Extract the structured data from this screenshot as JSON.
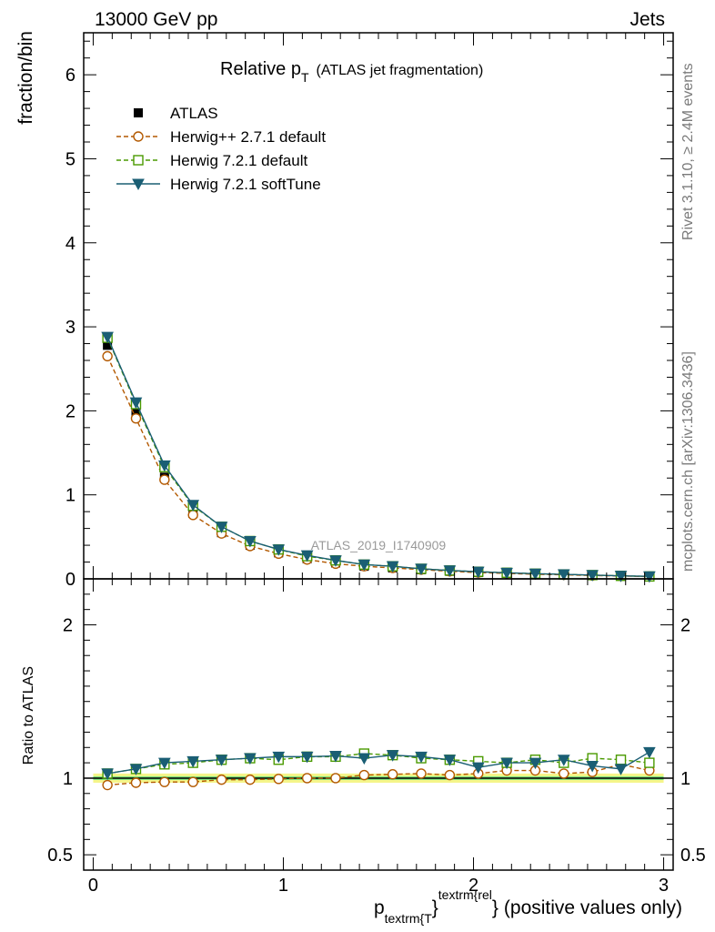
{
  "header": {
    "left": "13000 GeV pp",
    "right": "Jets"
  },
  "side_labels": {
    "rivet": "Rivet 3.1.10, ≥ 2.4M events",
    "mcplots": "mcplots.cern.ch [arXiv:1306.3436]"
  },
  "chart_data": {
    "type": "line",
    "title_main": "Relative p",
    "title_sub": "T",
    "title_rest": "(ATLAS jet fragmentation)",
    "watermark": "ATLAS_2019_I1740909",
    "ylabel": "fraction/bin",
    "ratio_ylabel": "Ratio to ATLAS",
    "xlabel": {
      "p": "p",
      "sub": "textrm{T",
      "brace1": "}",
      "sup": "textrm{rel",
      "brace2": "}",
      "rest": "(positive values only)"
    },
    "xlim": [
      -0.05,
      3.05
    ],
    "ylim": [
      0,
      6.5
    ],
    "ratio_ylim": [
      0.4,
      2.3
    ],
    "x_ticks": [
      {
        "v": 0,
        "label": "0"
      },
      {
        "v": 1,
        "label": "1"
      },
      {
        "v": 2,
        "label": "2"
      },
      {
        "v": 3,
        "label": "3"
      }
    ],
    "y_ticks": [
      {
        "v": 0,
        "label": "0"
      },
      {
        "v": 1,
        "label": "1"
      },
      {
        "v": 2,
        "label": "2"
      },
      {
        "v": 3,
        "label": "3"
      },
      {
        "v": 4,
        "label": "4"
      },
      {
        "v": 5,
        "label": "5"
      },
      {
        "v": 6,
        "label": "6"
      }
    ],
    "ratio_y_ticks": [
      {
        "v": 0.5,
        "label": "0.5"
      },
      {
        "v": 1,
        "label": "1"
      },
      {
        "v": 2,
        "label": "2"
      }
    ],
    "x": [
      0.075,
      0.225,
      0.375,
      0.525,
      0.675,
      0.825,
      0.975,
      1.125,
      1.275,
      1.425,
      1.575,
      1.725,
      1.875,
      2.025,
      2.175,
      2.325,
      2.475,
      2.625,
      2.775,
      2.925
    ],
    "data": {
      "name": "ATLAS",
      "values": [
        2.78,
        1.97,
        1.21,
        0.78,
        0.55,
        0.4,
        0.31,
        0.24,
        0.19,
        0.15,
        0.13,
        0.11,
        0.09,
        0.075,
        0.065,
        0.055,
        0.048,
        0.04,
        0.032,
        0.026
      ]
    },
    "series": [
      {
        "name": "Herwig++ 2.7.1 default",
        "color": "#b35900",
        "dash": "5,3",
        "marker": "circle",
        "values": [
          2.65,
          1.91,
          1.18,
          0.76,
          0.54,
          0.39,
          0.3,
          0.23,
          0.18,
          0.15,
          0.13,
          0.11,
          0.09,
          0.075,
          0.065,
          0.055,
          0.048,
          0.04,
          0.034,
          0.027
        ],
        "ratio": [
          0.955,
          0.97,
          0.975,
          0.975,
          0.99,
          0.99,
          0.995,
          1.0,
          1.0,
          1.02,
          1.025,
          1.03,
          1.02,
          1.03,
          1.05,
          1.05,
          1.03,
          1.04,
          1.09,
          1.05
        ]
      },
      {
        "name": "Herwig 7.2.1 default",
        "color": "#4a9a00",
        "dash": "5,3",
        "marker": "square",
        "values": [
          2.87,
          2.08,
          1.33,
          0.87,
          0.62,
          0.45,
          0.35,
          0.27,
          0.22,
          0.17,
          0.15,
          0.12,
          0.1,
          0.085,
          0.073,
          0.062,
          0.053,
          0.045,
          0.036,
          0.029
        ],
        "ratio": [
          1.03,
          1.06,
          1.09,
          1.1,
          1.12,
          1.13,
          1.12,
          1.14,
          1.14,
          1.16,
          1.15,
          1.13,
          1.12,
          1.11,
          1.1,
          1.12,
          1.1,
          1.13,
          1.12,
          1.1
        ]
      },
      {
        "name": "Herwig 7.2.1 softTune",
        "color": "#1a5e74",
        "dash": "",
        "marker": "triangle",
        "values": [
          2.88,
          2.1,
          1.35,
          0.88,
          0.62,
          0.45,
          0.35,
          0.28,
          0.22,
          0.17,
          0.15,
          0.12,
          0.1,
          0.085,
          0.072,
          0.062,
          0.054,
          0.045,
          0.036,
          0.03
        ],
        "ratio": [
          1.03,
          1.06,
          1.1,
          1.11,
          1.12,
          1.13,
          1.14,
          1.14,
          1.145,
          1.13,
          1.15,
          1.14,
          1.12,
          1.07,
          1.1,
          1.1,
          1.12,
          1.08,
          1.06,
          1.17
        ]
      }
    ],
    "band_outer_color": "#f5f58a",
    "band_inner_color": "#7de37d"
  }
}
